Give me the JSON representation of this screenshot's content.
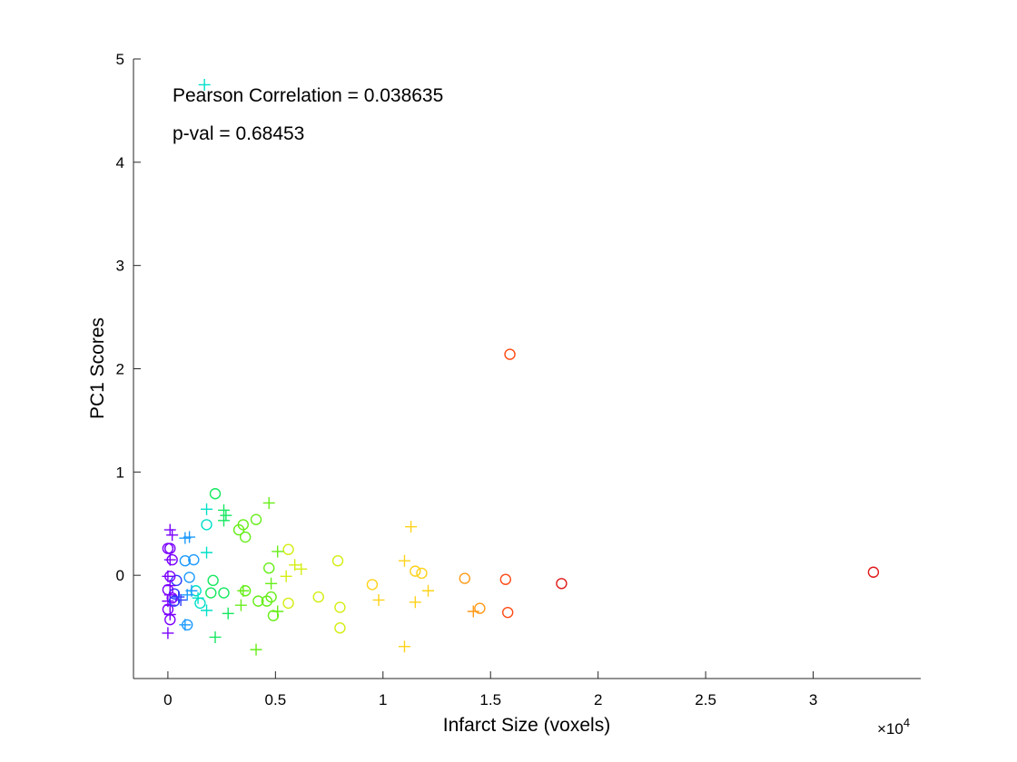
{
  "chart_data": {
    "type": "scatter",
    "title": "",
    "xlabel": "Infarct Size (voxels)",
    "ylabel": "PC1 Scores",
    "x_exponent_label": "×10",
    "x_exponent_power": "4",
    "xlim": [
      -1600,
      35000
    ],
    "ylim": [
      -1,
      5
    ],
    "x_ticks": [
      0,
      5000,
      10000,
      15000,
      20000,
      25000,
      30000
    ],
    "x_tick_labels": [
      "0",
      "0.5",
      "1",
      "1.5",
      "2",
      "2.5",
      "3"
    ],
    "y_ticks": [
      0,
      1,
      2,
      3,
      4,
      5
    ],
    "y_tick_labels": [
      "0",
      "1",
      "2",
      "3",
      "4",
      "5"
    ],
    "grid": false,
    "annotations": [
      "Pearson Correlation = 0.038635",
      "p-val = 0.68453"
    ],
    "marker_colors": [
      "#7a00ff",
      "#2f3cff",
      "#1d9bff",
      "#00e0c8",
      "#16e860",
      "#66ee18",
      "#d4ee12",
      "#ffd21a",
      "#ff9a18",
      "#ff4a14",
      "#e01a1a"
    ],
    "points": [
      {
        "x": 1700,
        "y": 4.75,
        "m": "+"
      },
      {
        "x": 15900,
        "y": 2.14,
        "m": "o"
      },
      {
        "x": 32800,
        "y": 0.03,
        "m": "o"
      },
      {
        "x": 18300,
        "y": -0.08,
        "m": "o"
      },
      {
        "x": 15700,
        "y": -0.04,
        "m": "o"
      },
      {
        "x": 13800,
        "y": -0.03,
        "m": "o"
      },
      {
        "x": 15800,
        "y": -0.36,
        "m": "o"
      },
      {
        "x": 14500,
        "y": -0.32,
        "m": "o"
      },
      {
        "x": 14200,
        "y": -0.35,
        "m": "+"
      },
      {
        "x": 11300,
        "y": 0.47,
        "m": "+"
      },
      {
        "x": 11500,
        "y": 0.04,
        "m": "o"
      },
      {
        "x": 11800,
        "y": 0.02,
        "m": "o"
      },
      {
        "x": 11000,
        "y": 0.14,
        "m": "+"
      },
      {
        "x": 12100,
        "y": -0.15,
        "m": "+"
      },
      {
        "x": 11500,
        "y": -0.26,
        "m": "+"
      },
      {
        "x": 11000,
        "y": -0.69,
        "m": "+"
      },
      {
        "x": 9500,
        "y": -0.09,
        "m": "o"
      },
      {
        "x": 9800,
        "y": -0.24,
        "m": "+"
      },
      {
        "x": 7900,
        "y": 0.14,
        "m": "o"
      },
      {
        "x": 8000,
        "y": -0.31,
        "m": "o"
      },
      {
        "x": 8000,
        "y": -0.51,
        "m": "o"
      },
      {
        "x": 7000,
        "y": -0.21,
        "m": "o"
      },
      {
        "x": 5600,
        "y": 0.25,
        "m": "o"
      },
      {
        "x": 5900,
        "y": 0.1,
        "m": "+"
      },
      {
        "x": 6200,
        "y": 0.06,
        "m": "+"
      },
      {
        "x": 5500,
        "y": -0.01,
        "m": "+"
      },
      {
        "x": 5100,
        "y": 0.23,
        "m": "+"
      },
      {
        "x": 4800,
        "y": -0.08,
        "m": "+"
      },
      {
        "x": 5600,
        "y": -0.27,
        "m": "o"
      },
      {
        "x": 5100,
        "y": -0.35,
        "m": "+"
      },
      {
        "x": 4700,
        "y": 0.7,
        "m": "+"
      },
      {
        "x": 4700,
        "y": 0.07,
        "m": "o"
      },
      {
        "x": 4800,
        "y": -0.21,
        "m": "o"
      },
      {
        "x": 4600,
        "y": -0.25,
        "m": "o"
      },
      {
        "x": 4200,
        "y": -0.25,
        "m": "o"
      },
      {
        "x": 4900,
        "y": -0.39,
        "m": "o"
      },
      {
        "x": 4100,
        "y": -0.72,
        "m": "+"
      },
      {
        "x": 4100,
        "y": 0.54,
        "m": "o"
      },
      {
        "x": 3500,
        "y": 0.49,
        "m": "o"
      },
      {
        "x": 3300,
        "y": 0.44,
        "m": "o"
      },
      {
        "x": 3600,
        "y": 0.37,
        "m": "o"
      },
      {
        "x": 3600,
        "y": -0.15,
        "m": "o"
      },
      {
        "x": 3500,
        "y": -0.15,
        "m": "+"
      },
      {
        "x": 3400,
        "y": -0.29,
        "m": "+"
      },
      {
        "x": 2800,
        "y": -0.37,
        "m": "+"
      },
      {
        "x": 2600,
        "y": 0.63,
        "m": "+"
      },
      {
        "x": 2700,
        "y": 0.58,
        "m": "+"
      },
      {
        "x": 2600,
        "y": 0.53,
        "m": "+"
      },
      {
        "x": 2200,
        "y": 0.79,
        "m": "o"
      },
      {
        "x": 1800,
        "y": 0.64,
        "m": "+"
      },
      {
        "x": 1800,
        "y": 0.49,
        "m": "o"
      },
      {
        "x": 1800,
        "y": 0.22,
        "m": "+"
      },
      {
        "x": 2100,
        "y": -0.05,
        "m": "o"
      },
      {
        "x": 2000,
        "y": -0.17,
        "m": "o"
      },
      {
        "x": 2600,
        "y": -0.17,
        "m": "o"
      },
      {
        "x": 2200,
        "y": -0.6,
        "m": "+"
      },
      {
        "x": 1800,
        "y": -0.34,
        "m": "+"
      },
      {
        "x": 1500,
        "y": -0.27,
        "m": "o"
      },
      {
        "x": 1400,
        "y": -0.22,
        "m": "+"
      },
      {
        "x": 1300,
        "y": -0.15,
        "m": "o"
      },
      {
        "x": 1200,
        "y": 0.15,
        "m": "o"
      },
      {
        "x": 1000,
        "y": 0.37,
        "m": "+"
      },
      {
        "x": 800,
        "y": 0.36,
        "m": "+"
      },
      {
        "x": 800,
        "y": 0.14,
        "m": "o"
      },
      {
        "x": 1000,
        "y": -0.02,
        "m": "o"
      },
      {
        "x": 1100,
        "y": -0.15,
        "m": "+"
      },
      {
        "x": 900,
        "y": -0.19,
        "m": "+"
      },
      {
        "x": 600,
        "y": -0.24,
        "m": "+"
      },
      {
        "x": 900,
        "y": -0.48,
        "m": "o"
      },
      {
        "x": 800,
        "y": -0.48,
        "m": "+"
      },
      {
        "x": 400,
        "y": -0.05,
        "m": "o"
      },
      {
        "x": 300,
        "y": -0.18,
        "m": "o"
      },
      {
        "x": 500,
        "y": -0.21,
        "m": "+"
      },
      {
        "x": 200,
        "y": 0.39,
        "m": "+"
      },
      {
        "x": 100,
        "y": 0.44,
        "m": "+"
      },
      {
        "x": 100,
        "y": 0.26,
        "m": "o"
      },
      {
        "x": 200,
        "y": 0.15,
        "m": "o"
      },
      {
        "x": 100,
        "y": 0.15,
        "m": "+"
      },
      {
        "x": 0,
        "y": 0.26,
        "m": "o"
      },
      {
        "x": 100,
        "y": -0.01,
        "m": "o"
      },
      {
        "x": 0,
        "y": -0.01,
        "m": "+"
      },
      {
        "x": 100,
        "y": -0.1,
        "m": "+"
      },
      {
        "x": 0,
        "y": -0.14,
        "m": "o"
      },
      {
        "x": 100,
        "y": -0.19,
        "m": "+"
      },
      {
        "x": 200,
        "y": -0.22,
        "m": "o"
      },
      {
        "x": 0,
        "y": -0.25,
        "m": "+"
      },
      {
        "x": 100,
        "y": -0.29,
        "m": "+"
      },
      {
        "x": 0,
        "y": -0.33,
        "m": "o"
      },
      {
        "x": 100,
        "y": -0.38,
        "m": "+"
      },
      {
        "x": 100,
        "y": -0.43,
        "m": "o"
      },
      {
        "x": 0,
        "y": -0.56,
        "m": "+"
      },
      {
        "x": 300,
        "y": -0.25,
        "m": "o"
      }
    ]
  }
}
